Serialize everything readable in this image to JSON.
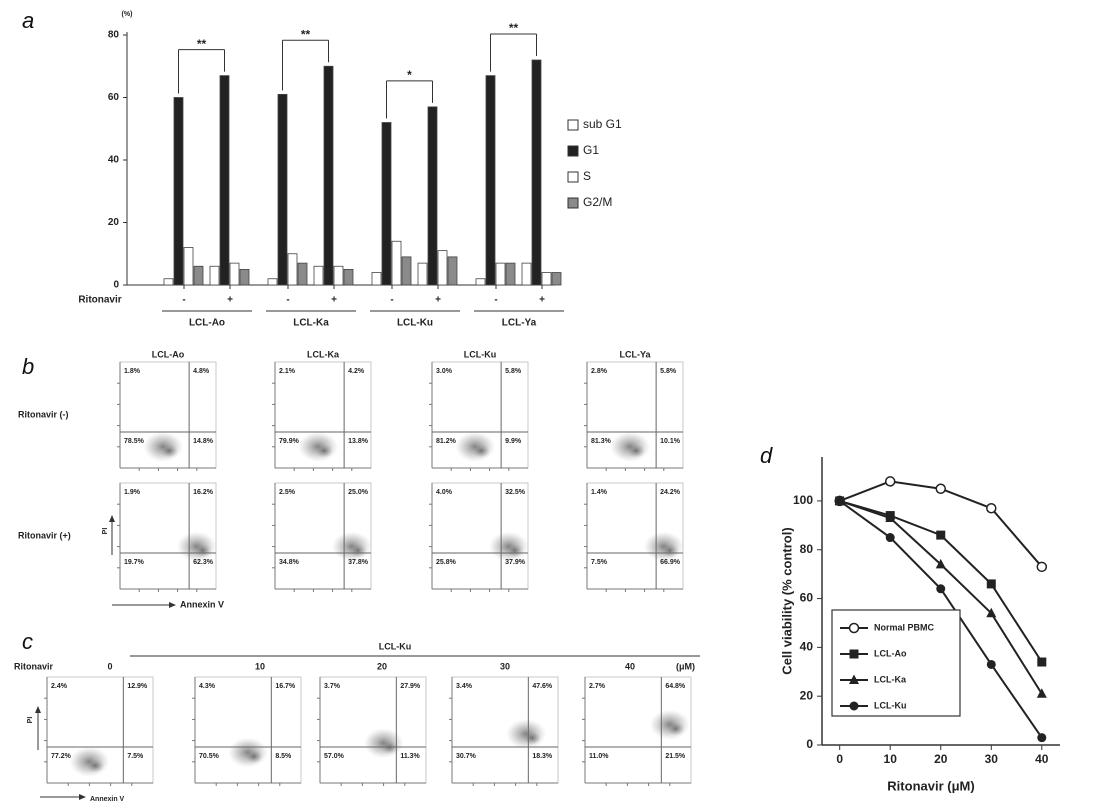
{
  "chart_data": [
    {
      "type": "bar",
      "panel": "a",
      "y_unit": "(%)",
      "x_label": "Ritonavir",
      "categories": [
        "-",
        "+",
        "-",
        "+",
        "-",
        "+",
        "-",
        "+"
      ],
      "groups": [
        "LCL-Ao",
        "LCL-Ka",
        "LCL-Ku",
        "LCL-Ya"
      ],
      "series": [
        {
          "name": "sub G1",
          "color": "#ffffff",
          "values": [
            2,
            6,
            2,
            6,
            4,
            7,
            2,
            7
          ]
        },
        {
          "name": "G1",
          "color": "#222222",
          "values": [
            60,
            67,
            61,
            70,
            52,
            57,
            67,
            72
          ]
        },
        {
          "name": "S",
          "color": "#ffffff",
          "values": [
            12,
            7,
            10,
            6,
            14,
            11,
            7,
            4
          ]
        },
        {
          "name": "G2/M",
          "color": "#8a8a8a",
          "values": [
            6,
            5,
            7,
            5,
            9,
            9,
            7,
            4
          ]
        }
      ],
      "annotations": [
        "**",
        "**",
        "*",
        "**"
      ],
      "ylim": [
        0,
        80
      ],
      "yticks": [
        0,
        20,
        40,
        60,
        80
      ],
      "legend": "right"
    },
    {
      "type": "line",
      "panel": "d",
      "x_label": "Ritonavir (μM)",
      "y_label": "Cell viability (% control)",
      "x": [
        0,
        10,
        20,
        30,
        40
      ],
      "series": [
        {
          "name": "Normal PBMC",
          "color": "#222222",
          "marker": "open-circle",
          "values": [
            100,
            108,
            105,
            97,
            73
          ]
        },
        {
          "name": "LCL-Ao",
          "color": "#222222",
          "marker": "square",
          "values": [
            100,
            94,
            86,
            66,
            34
          ]
        },
        {
          "name": "LCL-Ka",
          "color": "#222222",
          "marker": "triangle",
          "values": [
            100,
            93,
            74,
            54,
            21
          ]
        },
        {
          "name": "LCL-Ku",
          "color": "#222222",
          "marker": "circle",
          "values": [
            100,
            85,
            64,
            33,
            3
          ]
        }
      ],
      "xlim": [
        -3.5,
        43.6
      ],
      "xticks": [
        0,
        10,
        20,
        30,
        40
      ],
      "ylim": [
        0,
        118
      ],
      "yticks": [
        0,
        20,
        40,
        60,
        80,
        100
      ],
      "legend": "lower left"
    }
  ],
  "flow_b": {
    "panel": "b",
    "columns": [
      "LCL-Ao",
      "LCL-Ka",
      "LCL-Ku",
      "LCL-Ya"
    ],
    "rows": [
      {
        "label": "Ritonavir (-)",
        "plots": [
          [
            "1.8%",
            "4.8%",
            "78.5%",
            "14.8%"
          ],
          [
            "2.1%",
            "4.2%",
            "79.9%",
            "13.8%"
          ],
          [
            "3.0%",
            "5.8%",
            "81.2%",
            "9.9%"
          ],
          [
            "2.8%",
            "5.8%",
            "81.3%",
            "10.1%"
          ]
        ]
      },
      {
        "label": "Ritonavir (+)",
        "plots": [
          [
            "1.9%",
            "16.2%",
            "19.7%",
            "62.3%"
          ],
          [
            "2.5%",
            "25.0%",
            "34.8%",
            "37.8%"
          ],
          [
            "4.0%",
            "32.5%",
            "25.8%",
            "37.9%"
          ],
          [
            "1.4%",
            "24.2%",
            "7.5%",
            "66.9%"
          ]
        ]
      }
    ],
    "y_axis": "PI",
    "x_axis": "Annexin V"
  },
  "flow_c": {
    "panel": "c",
    "title": "LCL-Ku",
    "label": "Ritonavir",
    "unit": "(μM)",
    "doses": [
      0,
      10,
      20,
      30,
      40
    ],
    "plots": [
      [
        "2.4%",
        "12.9%",
        "77.2%",
        "7.5%"
      ],
      [
        "4.3%",
        "16.7%",
        "70.5%",
        "8.5%"
      ],
      [
        "3.7%",
        "27.9%",
        "57.0%",
        "11.3%"
      ],
      [
        "3.4%",
        "47.6%",
        "30.7%",
        "18.3%"
      ],
      [
        "2.7%",
        "64.8%",
        "11.0%",
        "21.5%"
      ]
    ],
    "y_axis": "PI",
    "x_axis": "Annexin V"
  }
}
